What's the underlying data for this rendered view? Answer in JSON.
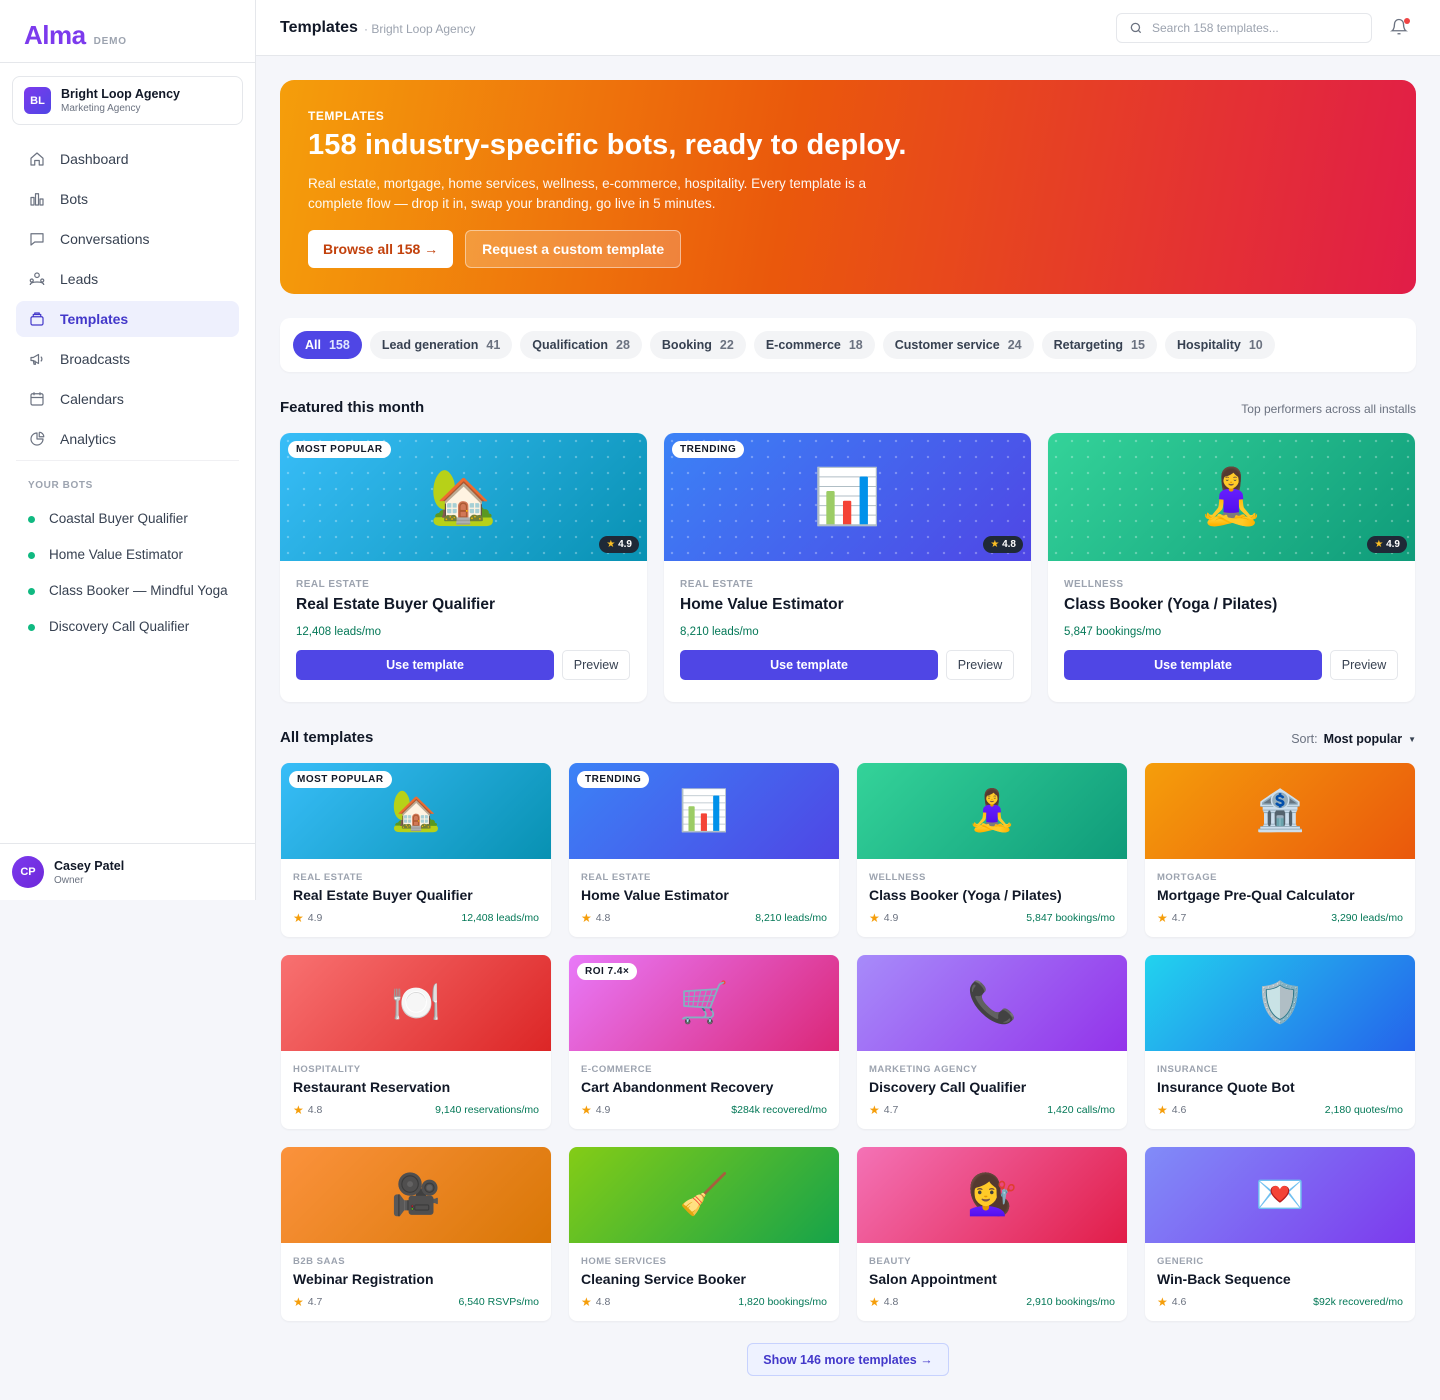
{
  "app": {
    "name": "Alma",
    "mode": "DEMO"
  },
  "org": {
    "initials": "BL",
    "name": "Bright Loop Agency",
    "type": "Marketing Agency"
  },
  "nav": [
    {
      "label": "Dashboard",
      "icon": "home-icon"
    },
    {
      "label": "Bots",
      "icon": "bar-chart-icon"
    },
    {
      "label": "Conversations",
      "icon": "chat-icon"
    },
    {
      "label": "Leads",
      "icon": "people-icon"
    },
    {
      "label": "Templates",
      "icon": "layers-icon",
      "active": true
    },
    {
      "label": "Broadcasts",
      "icon": "megaphone-icon"
    },
    {
      "label": "Calendars",
      "icon": "calendar-icon"
    },
    {
      "label": "Analytics",
      "icon": "pie-chart-icon"
    }
  ],
  "your_bots": {
    "title": "YOUR BOTS",
    "items": [
      "Coastal Buyer Qualifier",
      "Home Value Estimator",
      "Class Booker — Mindful Yoga",
      "Discovery Call Qualifier"
    ]
  },
  "user": {
    "initials": "CP",
    "name": "Casey Patel",
    "role": "Owner"
  },
  "header": {
    "title": "Templates",
    "breadcrumb": "· Bright Loop Agency",
    "search_placeholder": "Search 158 templates..."
  },
  "hero": {
    "kicker": "TEMPLATES",
    "title": "158 industry-specific bots, ready to deploy.",
    "subtitle": "Real estate, mortgage, home services, wellness, e-commerce, hospitality. Every template is a complete flow — drop it in, swap your branding, go live in 5 minutes.",
    "primary_button": "Browse all 158 →",
    "secondary_button": "Request a custom template"
  },
  "filters": [
    {
      "label": "All",
      "count": "158",
      "active": true
    },
    {
      "label": "Lead generation",
      "count": "41"
    },
    {
      "label": "Qualification",
      "count": "28"
    },
    {
      "label": "Booking",
      "count": "22"
    },
    {
      "label": "E-commerce",
      "count": "18"
    },
    {
      "label": "Customer service",
      "count": "24"
    },
    {
      "label": "Retargeting",
      "count": "15"
    },
    {
      "label": "Hospitality",
      "count": "10"
    }
  ],
  "featured": {
    "title": "Featured this month",
    "aside": "Top performers across all installs",
    "use_label": "Use template",
    "preview_label": "Preview",
    "items": [
      {
        "badge": "MOST POPULAR",
        "rating": "4.9",
        "category": "REAL ESTATE",
        "name": "Real Estate Buyer Qualifier",
        "metric": "12,408 leads/mo",
        "emoji": "🏡",
        "icon": "house-icon",
        "gradient": [
          "#38bdf8",
          "#0891b2"
        ]
      },
      {
        "badge": "TRENDING",
        "rating": "4.8",
        "category": "REAL ESTATE",
        "name": "Home Value Estimator",
        "metric": "8,210 leads/mo",
        "emoji": "📊",
        "icon": "chart-icon",
        "gradient": [
          "#3b82f6",
          "#4f46e5"
        ]
      },
      {
        "badge": "",
        "rating": "4.9",
        "category": "WELLNESS",
        "name": "Class Booker (Yoga / Pilates)",
        "metric": "5,847 bookings/mo",
        "emoji": "🧘‍♀️",
        "icon": "yoga-icon",
        "gradient": [
          "#34d399",
          "#0f9b7a"
        ]
      }
    ]
  },
  "all": {
    "title": "All templates",
    "sort_label": "Sort:",
    "sort_value": "Most popular",
    "items": [
      {
        "badge": "MOST POPULAR",
        "category": "REAL ESTATE",
        "name": "Real Estate Buyer Qualifier",
        "rating": "4.9",
        "metric": "12,408 leads/mo",
        "emoji": "🏡",
        "icon": "house-icon",
        "gradient": [
          "#38bdf8",
          "#0891b2"
        ]
      },
      {
        "badge": "TRENDING",
        "category": "REAL ESTATE",
        "name": "Home Value Estimator",
        "rating": "4.8",
        "metric": "8,210 leads/mo",
        "emoji": "📊",
        "icon": "chart-icon",
        "gradient": [
          "#3b82f6",
          "#4f46e5"
        ]
      },
      {
        "badge": "",
        "category": "WELLNESS",
        "name": "Class Booker (Yoga / Pilates)",
        "rating": "4.9",
        "metric": "5,847 bookings/mo",
        "emoji": "🧘‍♀️",
        "icon": "yoga-icon",
        "gradient": [
          "#34d399",
          "#0f9b7a"
        ]
      },
      {
        "badge": "",
        "category": "MORTGAGE",
        "name": "Mortgage Pre-Qual Calculator",
        "rating": "4.7",
        "metric": "3,290 leads/mo",
        "emoji": "🏦",
        "icon": "bank-icon",
        "gradient": [
          "#f59e0b",
          "#ea580c"
        ]
      },
      {
        "badge": "",
        "category": "HOSPITALITY",
        "name": "Restaurant Reservation",
        "rating": "4.8",
        "metric": "9,140 reservations/mo",
        "emoji": "🍽️",
        "icon": "plate-icon",
        "gradient": [
          "#f87171",
          "#dc2626"
        ]
      },
      {
        "badge": "ROI 7.4×",
        "category": "E-COMMERCE",
        "name": "Cart Abandonment Recovery",
        "rating": "4.9",
        "metric": "$284k recovered/mo",
        "emoji": "🛒",
        "icon": "cart-icon",
        "gradient": [
          "#e879f9",
          "#db2777"
        ]
      },
      {
        "badge": "",
        "category": "MARKETING AGENCY",
        "name": "Discovery Call Qualifier",
        "rating": "4.7",
        "metric": "1,420 calls/mo",
        "emoji": "📞",
        "icon": "phone-icon",
        "gradient": [
          "#a78bfa",
          "#9333ea"
        ]
      },
      {
        "badge": "",
        "category": "INSURANCE",
        "name": "Insurance Quote Bot",
        "rating": "4.6",
        "metric": "2,180 quotes/mo",
        "emoji": "🛡️",
        "icon": "shield-icon",
        "gradient": [
          "#22d3ee",
          "#2563eb"
        ]
      },
      {
        "badge": "",
        "category": "B2B SAAS",
        "name": "Webinar Registration",
        "rating": "4.7",
        "metric": "6,540 RSVPs/mo",
        "emoji": "🎥",
        "icon": "camera-icon",
        "gradient": [
          "#fb923c",
          "#d97706"
        ]
      },
      {
        "badge": "",
        "category": "HOME SERVICES",
        "name": "Cleaning Service Booker",
        "rating": "4.8",
        "metric": "1,820 bookings/mo",
        "emoji": "🧹",
        "icon": "broom-icon",
        "gradient": [
          "#84cc16",
          "#16a34a"
        ]
      },
      {
        "badge": "",
        "category": "BEAUTY",
        "name": "Salon Appointment",
        "rating": "4.8",
        "metric": "2,910 bookings/mo",
        "emoji": "💇‍♀️",
        "icon": "haircut-icon",
        "gradient": [
          "#f472b6",
          "#e11d48"
        ]
      },
      {
        "badge": "",
        "category": "GENERIC",
        "name": "Win-Back Sequence",
        "rating": "4.6",
        "metric": "$92k recovered/mo",
        "emoji": "💌",
        "icon": "love-letter-icon",
        "gradient": [
          "#818cf8",
          "#7c3aed"
        ]
      }
    ]
  },
  "more_button": "Show 146 more templates →"
}
